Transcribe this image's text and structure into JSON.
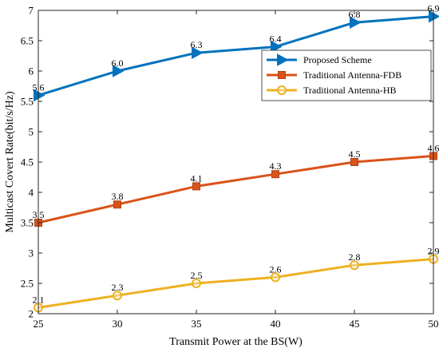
{
  "chart_data": {
    "type": "line",
    "title": "",
    "xlabel": "Transmit Power at the BS(W)",
    "ylabel": "Multicast Covert Rate(bit/s/Hz)",
    "x": [
      25,
      30,
      35,
      40,
      45,
      50
    ],
    "xlim": [
      25,
      50
    ],
    "ylim": [
      2,
      7
    ],
    "xticks": [
      "25",
      "30",
      "35",
      "40",
      "45",
      "50"
    ],
    "yticks": [
      "2",
      "2.5",
      "3",
      "3.5",
      "4",
      "4.5",
      "5",
      "5.5",
      "6",
      "6.5",
      "7"
    ],
    "grid": false,
    "legend_position": "top-right",
    "series": [
      {
        "name": "Proposed Scheme",
        "values": [
          5.6,
          6.0,
          6.3,
          6.4,
          6.8,
          6.9
        ],
        "labels": [
          "5.6",
          "6.0",
          "6.3",
          "6.4",
          "6.8",
          "6.9"
        ],
        "color": "#0072BD",
        "marker": "triangle-right"
      },
      {
        "name": "Traditional Antenna-FDB",
        "values": [
          3.5,
          3.8,
          4.1,
          4.3,
          4.5,
          4.6
        ],
        "labels": [
          "3.5",
          "3.8",
          "4.1",
          "4.3",
          "4.5",
          "4.6"
        ],
        "color": "#D95319",
        "marker": "square"
      },
      {
        "name": "Traditional Antenna-HB",
        "values": [
          2.1,
          2.3,
          2.5,
          2.6,
          2.8,
          2.9
        ],
        "labels": [
          "2.1",
          "2.3",
          "2.5",
          "2.6",
          "2.8",
          "2.9"
        ],
        "color": "#EDB120",
        "marker": "circle"
      }
    ]
  }
}
